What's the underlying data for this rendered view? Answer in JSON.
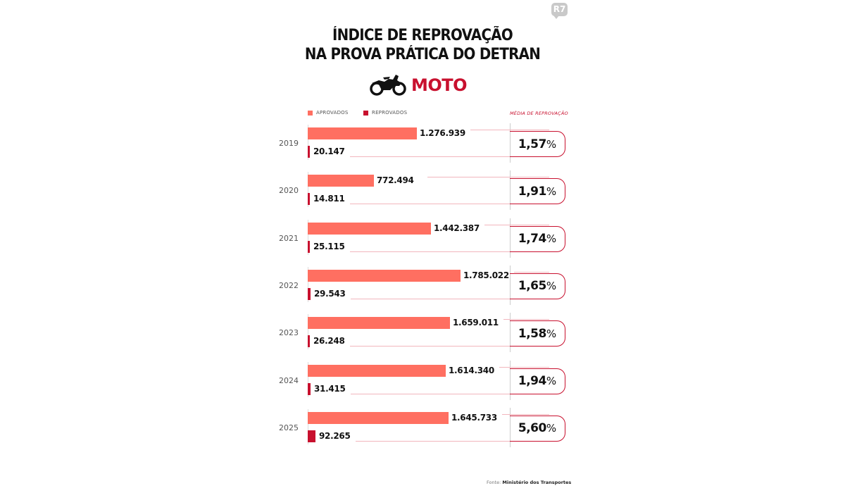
{
  "brand": {
    "logo": "R7"
  },
  "header": {
    "title_line1": "ÍNDICE DE REPROVAÇÃO",
    "title_line2": "NA PROVA PRÁTICA DO DETRAN",
    "category_icon": "motorcycle-icon",
    "category": "MOTO"
  },
  "legend": {
    "approved": "APROVADOS",
    "rejected": "REPROVADOS",
    "average": "MÉDIA DE REPROVAÇÃO"
  },
  "colors": {
    "approved": "#ff6f61",
    "rejected": "#c8102e",
    "accent": "#c8102e"
  },
  "rows": [
    {
      "year": "2019",
      "approved": "1.276.939",
      "rejected": "20.147",
      "pct": "1,57",
      "pct_sign": "%"
    },
    {
      "year": "2020",
      "approved": "772.494",
      "rejected": "14.811",
      "pct": "1,91",
      "pct_sign": "%"
    },
    {
      "year": "2021",
      "approved": "1.442.387",
      "rejected": "25.115",
      "pct": "1,74",
      "pct_sign": "%"
    },
    {
      "year": "2022",
      "approved": "1.785.022",
      "rejected": "29.543",
      "pct": "1,65",
      "pct_sign": "%"
    },
    {
      "year": "2023",
      "approved": "1.659.011",
      "rejected": "26.248",
      "pct": "1,58",
      "pct_sign": "%"
    },
    {
      "year": "2024",
      "approved": "1.614.340",
      "rejected": "31.415",
      "pct": "1,94",
      "pct_sign": "%"
    },
    {
      "year": "2025",
      "approved": "1.645.733",
      "rejected": "92.265",
      "pct": "5,60",
      "pct_sign": "%"
    }
  ],
  "footer": {
    "source_label": "Fonte:",
    "source": "Ministério dos Transportes"
  },
  "chart_data": {
    "type": "bar",
    "orientation": "horizontal",
    "title": "Índice de reprovação na prova prática do Detran — Moto",
    "categories": [
      "2019",
      "2020",
      "2021",
      "2022",
      "2023",
      "2024",
      "2025"
    ],
    "series": [
      {
        "name": "Aprovados",
        "color": "#ff6f61",
        "values": [
          1276939,
          772494,
          1442387,
          1785022,
          1659011,
          1614340,
          1645733
        ]
      },
      {
        "name": "Reprovados",
        "color": "#c8102e",
        "values": [
          20147,
          14811,
          25115,
          29543,
          26248,
          31415,
          92265
        ]
      }
    ],
    "annotations": {
      "name": "Média de reprovação (%)",
      "values": [
        1.57,
        1.91,
        1.74,
        1.65,
        1.58,
        1.94,
        5.6
      ]
    },
    "xlabel": "",
    "ylabel": "",
    "grid": false,
    "legend_position": "top",
    "source": "Fonte: Ministério dos Transportes"
  }
}
